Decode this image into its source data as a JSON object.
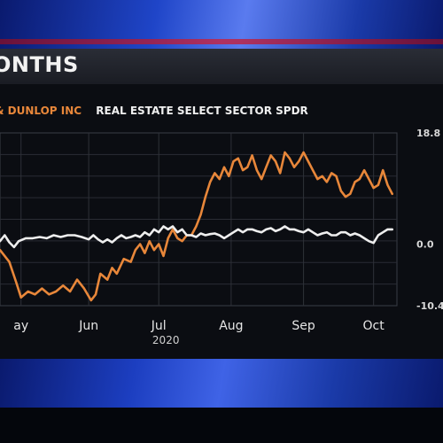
{
  "header": {
    "title": "ONTHS"
  },
  "chart_data": {
    "type": "line",
    "legend": [
      "& DUNLOP INC",
      "REAL ESTATE SELECT SECTOR SPDR"
    ],
    "x_ticks": [
      {
        "label": "ay",
        "day": 1
      },
      {
        "label": "Jun",
        "day": 30
      },
      {
        "label": "Jul",
        "sub": "2020",
        "day": 60
      },
      {
        "label": "Aug",
        "day": 91
      },
      {
        "label": "Sep",
        "day": 122
      },
      {
        "label": "Oct",
        "day": 152
      }
    ],
    "y_ticks": [
      {
        "label": "18.8",
        "value": 18.8
      },
      {
        "label": "0.0",
        "value": 0.0
      },
      {
        "label": "-10.4",
        "value": -10.4
      }
    ],
    "xlim": [
      -8,
      162
    ],
    "ylim": [
      -10.4,
      18.8
    ],
    "grid": true,
    "series": [
      {
        "name": "& DUNLOP INC",
        "color": "#e8873a",
        "points": [
          [
            -8,
            -1
          ],
          [
            -4,
            -3
          ],
          [
            -1,
            -6.5
          ],
          [
            1,
            -9
          ],
          [
            4,
            -8
          ],
          [
            7,
            -8.5
          ],
          [
            10,
            -7.5
          ],
          [
            13,
            -8.5
          ],
          [
            16,
            -8
          ],
          [
            19,
            -7
          ],
          [
            22,
            -8
          ],
          [
            25,
            -6
          ],
          [
            28,
            -7.5
          ],
          [
            31,
            -9.5
          ],
          [
            33,
            -8.5
          ],
          [
            35,
            -5
          ],
          [
            38,
            -6
          ],
          [
            40,
            -4
          ],
          [
            42,
            -5
          ],
          [
            45,
            -2.5
          ],
          [
            48,
            -3
          ],
          [
            50,
            -1
          ],
          [
            52,
            0
          ],
          [
            54,
            -1.5
          ],
          [
            56,
            0.5
          ],
          [
            58,
            -1
          ],
          [
            60,
            0
          ],
          [
            62,
            -2
          ],
          [
            64,
            1
          ],
          [
            66,
            2.5
          ],
          [
            68,
            1
          ],
          [
            70,
            0.5
          ],
          [
            72,
            1.5
          ],
          [
            74,
            1.5
          ],
          [
            76,
            3
          ],
          [
            78,
            5
          ],
          [
            80,
            8
          ],
          [
            82,
            10.5
          ],
          [
            84,
            12
          ],
          [
            86,
            11
          ],
          [
            88,
            13
          ],
          [
            90,
            11.5
          ],
          [
            92,
            14
          ],
          [
            94,
            14.5
          ],
          [
            96,
            12.5
          ],
          [
            98,
            13
          ],
          [
            100,
            15
          ],
          [
            102,
            12.5
          ],
          [
            104,
            11
          ],
          [
            106,
            13
          ],
          [
            108,
            15
          ],
          [
            110,
            14
          ],
          [
            112,
            12
          ],
          [
            114,
            15.5
          ],
          [
            116,
            14.5
          ],
          [
            118,
            13
          ],
          [
            120,
            14
          ],
          [
            122,
            15.5
          ],
          [
            124,
            14
          ],
          [
            126,
            12.5
          ],
          [
            128,
            11
          ],
          [
            130,
            11.5
          ],
          [
            132,
            10.5
          ],
          [
            134,
            12
          ],
          [
            136,
            11.5
          ],
          [
            138,
            9
          ],
          [
            140,
            8
          ],
          [
            142,
            8.5
          ],
          [
            144,
            10.5
          ],
          [
            146,
            11
          ],
          [
            148,
            12.5
          ],
          [
            150,
            11
          ],
          [
            152,
            9.5
          ],
          [
            154,
            10
          ],
          [
            156,
            12.5
          ],
          [
            158,
            10
          ],
          [
            160,
            8.5
          ]
        ]
      },
      {
        "name": "REAL ESTATE SELECT SECTOR SPDR",
        "color": "#eeeeee",
        "points": [
          [
            -8,
            0.5
          ],
          [
            -6,
            1.5
          ],
          [
            -4,
            0.3
          ],
          [
            -2,
            -0.5
          ],
          [
            0,
            0.5
          ],
          [
            3,
            1
          ],
          [
            6,
            1
          ],
          [
            9,
            1.2
          ],
          [
            12,
            1
          ],
          [
            15,
            1.5
          ],
          [
            18,
            1.2
          ],
          [
            21,
            1.5
          ],
          [
            24,
            1.5
          ],
          [
            27,
            1.2
          ],
          [
            30,
            0.8
          ],
          [
            32,
            1.5
          ],
          [
            34,
            0.8
          ],
          [
            36,
            0.3
          ],
          [
            38,
            0.8
          ],
          [
            40,
            0.3
          ],
          [
            42,
            1
          ],
          [
            44,
            1.5
          ],
          [
            46,
            1
          ],
          [
            48,
            1.2
          ],
          [
            50,
            1.5
          ],
          [
            52,
            1.2
          ],
          [
            54,
            2
          ],
          [
            56,
            1.5
          ],
          [
            58,
            2.5
          ],
          [
            60,
            2
          ],
          [
            62,
            3
          ],
          [
            64,
            2.5
          ],
          [
            66,
            3
          ],
          [
            68,
            2
          ],
          [
            70,
            2.5
          ],
          [
            72,
            1.5
          ],
          [
            74,
            1.5
          ],
          [
            76,
            1.2
          ],
          [
            78,
            1.8
          ],
          [
            80,
            1.5
          ],
          [
            82,
            1.7
          ],
          [
            84,
            1.8
          ],
          [
            86,
            1.5
          ],
          [
            88,
            1
          ],
          [
            90,
            1.5
          ],
          [
            92,
            2
          ],
          [
            94,
            2.5
          ],
          [
            96,
            2
          ],
          [
            98,
            2.5
          ],
          [
            100,
            2.5
          ],
          [
            102,
            2.2
          ],
          [
            104,
            2
          ],
          [
            106,
            2.5
          ],
          [
            108,
            2.7
          ],
          [
            110,
            2.2
          ],
          [
            112,
            2.5
          ],
          [
            114,
            3
          ],
          [
            116,
            2.5
          ],
          [
            118,
            2.5
          ],
          [
            120,
            2.2
          ],
          [
            122,
            2
          ],
          [
            124,
            2.5
          ],
          [
            126,
            2
          ],
          [
            128,
            1.5
          ],
          [
            130,
            1.8
          ],
          [
            132,
            2
          ],
          [
            134,
            1.5
          ],
          [
            136,
            1.5
          ],
          [
            138,
            2
          ],
          [
            140,
            2
          ],
          [
            142,
            1.5
          ],
          [
            144,
            1.8
          ],
          [
            146,
            1.5
          ],
          [
            148,
            1
          ],
          [
            150,
            0.5
          ],
          [
            152,
            0.2
          ],
          [
            154,
            1.5
          ],
          [
            156,
            2
          ],
          [
            158,
            2.5
          ],
          [
            160,
            2.5
          ]
        ]
      }
    ]
  }
}
